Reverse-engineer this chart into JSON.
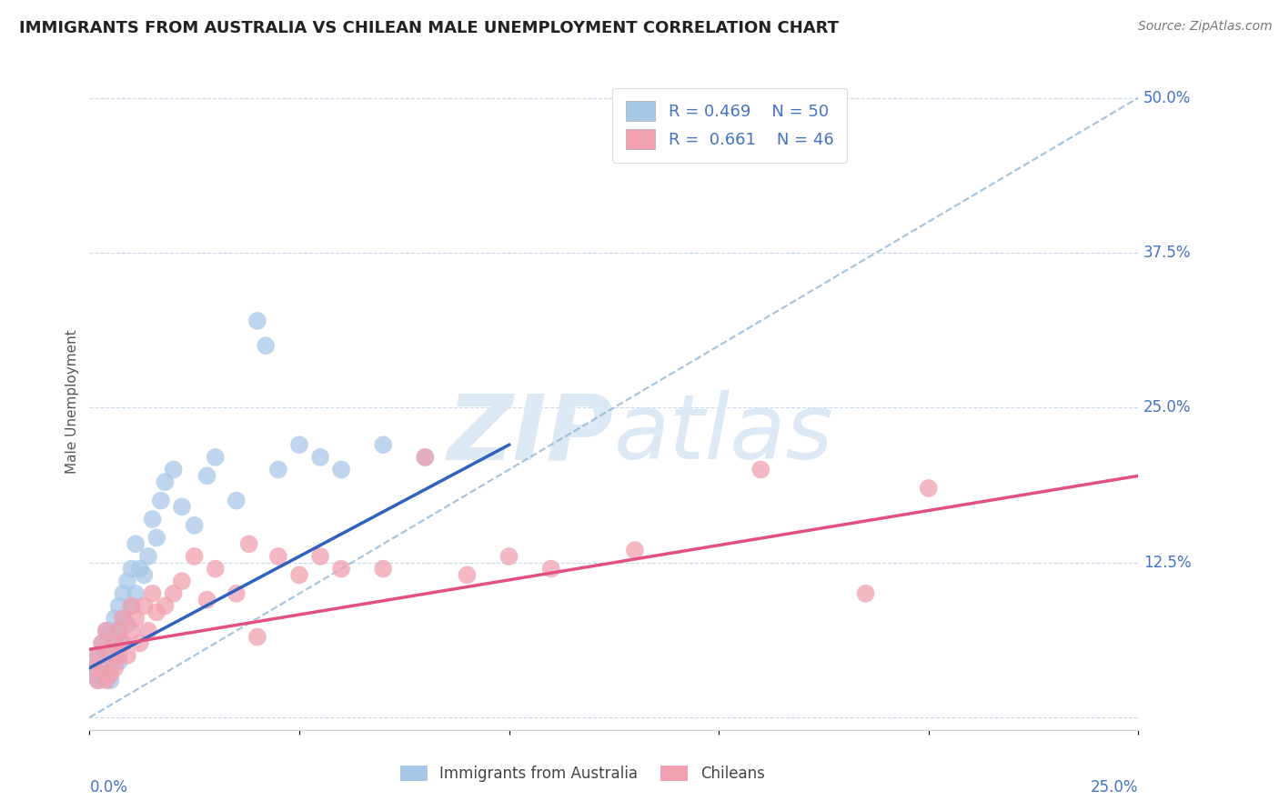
{
  "title": "IMMIGRANTS FROM AUSTRALIA VS CHILEAN MALE UNEMPLOYMENT CORRELATION CHART",
  "source": "Source: ZipAtlas.com",
  "ylabel_label": "Male Unemployment",
  "y_ticks": [
    0.0,
    0.125,
    0.25,
    0.375,
    0.5
  ],
  "x_range": [
    0.0,
    0.25
  ],
  "y_range": [
    -0.01,
    0.52
  ],
  "legend_r1": "R = 0.469",
  "legend_n1": "N = 50",
  "legend_r2": "R = 0.661",
  "legend_n2": "N = 46",
  "color_blue": "#A8C8E8",
  "color_pink": "#F0A0B0",
  "color_blue_line": "#3060C0",
  "color_pink_line": "#E05080",
  "color_dashed": "#90B8D8",
  "color_grid": "#C8D8E8",
  "color_axis_labels": "#4472C4",
  "color_title": "#222222",
  "watermark_color": "#DCE8F4",
  "blue_scatter_x": [
    0.001,
    0.001,
    0.002,
    0.002,
    0.003,
    0.003,
    0.003,
    0.004,
    0.004,
    0.004,
    0.005,
    0.005,
    0.005,
    0.005,
    0.006,
    0.006,
    0.006,
    0.007,
    0.007,
    0.007,
    0.008,
    0.008,
    0.008,
    0.009,
    0.009,
    0.01,
    0.01,
    0.011,
    0.011,
    0.012,
    0.013,
    0.014,
    0.015,
    0.016,
    0.017,
    0.018,
    0.02,
    0.022,
    0.025,
    0.028,
    0.03,
    0.035,
    0.04,
    0.042,
    0.045,
    0.05,
    0.055,
    0.06,
    0.07,
    0.08
  ],
  "blue_scatter_y": [
    0.035,
    0.04,
    0.03,
    0.05,
    0.04,
    0.06,
    0.035,
    0.05,
    0.07,
    0.04,
    0.03,
    0.05,
    0.07,
    0.04,
    0.06,
    0.08,
    0.05,
    0.07,
    0.045,
    0.09,
    0.06,
    0.08,
    0.1,
    0.075,
    0.11,
    0.09,
    0.12,
    0.1,
    0.14,
    0.12,
    0.115,
    0.13,
    0.16,
    0.145,
    0.175,
    0.19,
    0.2,
    0.17,
    0.155,
    0.195,
    0.21,
    0.175,
    0.32,
    0.3,
    0.2,
    0.22,
    0.21,
    0.2,
    0.22,
    0.21
  ],
  "pink_scatter_x": [
    0.001,
    0.002,
    0.002,
    0.003,
    0.003,
    0.004,
    0.004,
    0.005,
    0.005,
    0.006,
    0.006,
    0.007,
    0.007,
    0.008,
    0.008,
    0.009,
    0.01,
    0.01,
    0.011,
    0.012,
    0.013,
    0.014,
    0.015,
    0.016,
    0.018,
    0.02,
    0.022,
    0.025,
    0.028,
    0.03,
    0.035,
    0.038,
    0.04,
    0.045,
    0.05,
    0.055,
    0.06,
    0.07,
    0.08,
    0.09,
    0.1,
    0.11,
    0.13,
    0.16,
    0.185,
    0.2
  ],
  "pink_scatter_y": [
    0.04,
    0.03,
    0.05,
    0.04,
    0.06,
    0.03,
    0.07,
    0.05,
    0.035,
    0.06,
    0.04,
    0.07,
    0.05,
    0.06,
    0.08,
    0.05,
    0.07,
    0.09,
    0.08,
    0.06,
    0.09,
    0.07,
    0.1,
    0.085,
    0.09,
    0.1,
    0.11,
    0.13,
    0.095,
    0.12,
    0.1,
    0.14,
    0.065,
    0.13,
    0.115,
    0.13,
    0.12,
    0.12,
    0.21,
    0.115,
    0.13,
    0.12,
    0.135,
    0.2,
    0.1,
    0.185
  ],
  "blue_line_x0": 0.0,
  "blue_line_y0": 0.04,
  "blue_line_x1": 0.1,
  "blue_line_y1": 0.22,
  "pink_line_x0": 0.0,
  "pink_line_y0": 0.055,
  "pink_line_x1": 0.25,
  "pink_line_y1": 0.195,
  "dash_line_x0": 0.0,
  "dash_line_y0": 0.0,
  "dash_line_x1": 0.25,
  "dash_line_y1": 0.5
}
